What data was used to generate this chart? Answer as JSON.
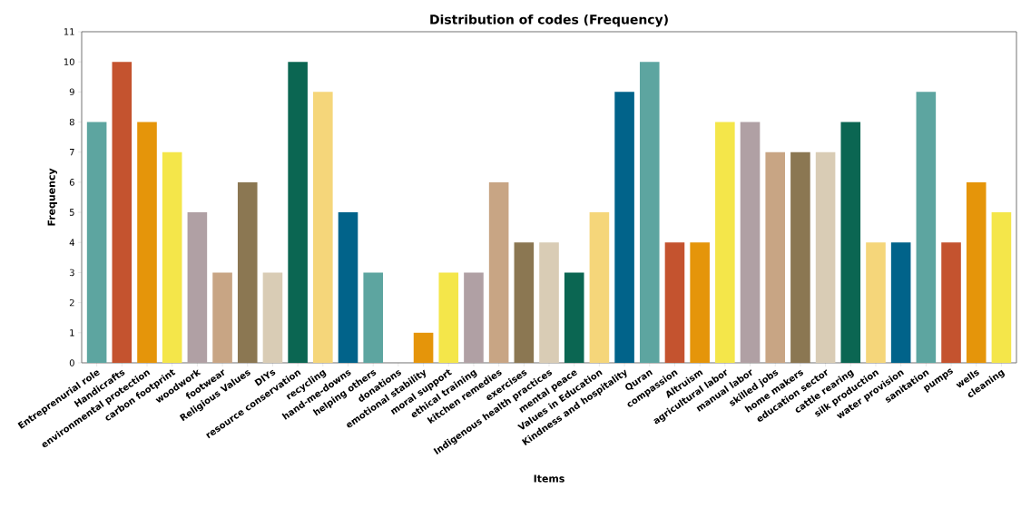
{
  "chart_data": {
    "type": "bar",
    "title": "Distribution of codes (Frequency)",
    "xlabel": "Items",
    "ylabel": "Frequency",
    "categories": [
      "Entreprenurial role",
      "Handicrafts",
      "environmental protection",
      "carbon footprint",
      "woodwork",
      "footwear",
      "Religious Values",
      "DIYs",
      "resource conservation",
      "recycling",
      "hand-me-downs",
      "helping others",
      "donations",
      "emotional stability",
      "moral support",
      "ethical training",
      "kitchen remedies",
      "exercises",
      "Indigenous health practices",
      "mental peace",
      "Values in Education",
      "Kindness and hospitality",
      "Quran",
      "compassion",
      "Altruism",
      "agricultural labor",
      "manual labor",
      "skilled jobs",
      "home makers",
      "education sector",
      "cattle rearing",
      "silk production",
      "water provision",
      "sanitation",
      "pumps",
      "wells",
      "cleaning"
    ],
    "values": [
      8,
      10,
      8,
      7,
      5,
      3,
      6,
      3,
      10,
      9,
      5,
      3,
      0,
      1,
      3,
      3,
      6,
      4,
      4,
      3,
      5,
      9,
      10,
      4,
      4,
      8,
      8,
      7,
      7,
      7,
      8,
      4,
      4,
      9,
      4,
      6,
      5
    ],
    "colors": [
      "#5da5a0",
      "#c4532f",
      "#e5950a",
      "#f4e64a",
      "#b0a0a4",
      "#c8a584",
      "#8b7752",
      "#d9ccb5",
      "#0b6652",
      "#f5d67a",
      "#01638a",
      "#5da5a0",
      "#c4532f",
      "#e5950a",
      "#f4e64a",
      "#b0a0a4",
      "#c8a584",
      "#8b7752",
      "#d9ccb5",
      "#0b6652",
      "#f5d67a",
      "#01638a",
      "#5da5a0",
      "#c4532f",
      "#e5950a",
      "#f4e64a",
      "#b0a0a4",
      "#c8a584",
      "#8b7752",
      "#d9ccb5",
      "#0b6652",
      "#f5d67a",
      "#01638a",
      "#5da5a0",
      "#c4532f",
      "#e5950a",
      "#f4e64a"
    ],
    "ylim": [
      0,
      11
    ],
    "yticks": [
      0,
      1,
      2,
      3,
      4,
      5,
      6,
      7,
      8,
      9,
      10,
      11
    ]
  }
}
